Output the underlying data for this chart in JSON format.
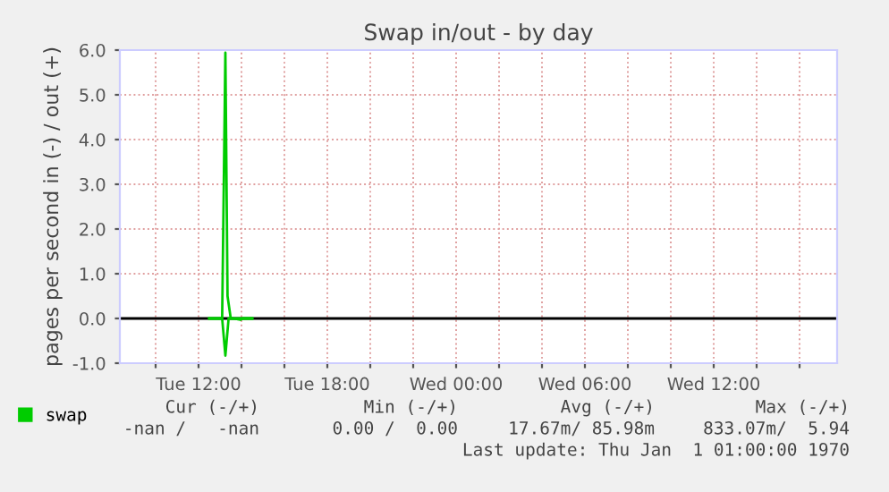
{
  "chart_data": {
    "type": "line",
    "title": "Swap in/out - by day",
    "ylabel": "pages per second in (-) / out (+)",
    "series": [
      {
        "name": "swap",
        "color": "#00cc00",
        "x": [
          "1970-01-06T12:30",
          "1970-01-06T13:06",
          "1970-01-06T13:15",
          "1970-01-06T13:21",
          "1970-01-06T13:30",
          "1970-01-06T14:00",
          "1970-01-06T14:30"
        ],
        "values": [
          0,
          0,
          5.94,
          0.5,
          0,
          0,
          0
        ]
      },
      {
        "color": "#00cc00",
        "x": [
          "1970-01-06T12:30",
          "1970-01-06T13:06",
          "1970-01-06T13:15",
          "1970-01-06T13:24",
          "1970-01-06T13:36",
          "1970-01-06T13:57",
          "1970-01-06T14:03",
          "1970-01-06T14:30"
        ],
        "values": [
          0,
          0,
          -0.83,
          0,
          0,
          -0.03,
          0,
          0
        ]
      }
    ],
    "xlim": [
      "1970-01-06T08:20",
      "1970-01-07T17:45"
    ],
    "xticks": [
      {
        "value": "1970-01-06T10:00",
        "label": null
      },
      {
        "value": "1970-01-06T12:00",
        "label": "Tue 12:00"
      },
      {
        "value": "1970-01-06T14:00",
        "label": null
      },
      {
        "value": "1970-01-06T16:00",
        "label": null
      },
      {
        "value": "1970-01-06T18:00",
        "label": "Tue 18:00"
      },
      {
        "value": "1970-01-06T20:00",
        "label": null
      },
      {
        "value": "1970-01-06T22:00",
        "label": null
      },
      {
        "value": "1970-01-07T00:00",
        "label": "Wed 00:00"
      },
      {
        "value": "1970-01-07T02:00",
        "label": null
      },
      {
        "value": "1970-01-07T04:00",
        "label": null
      },
      {
        "value": "1970-01-07T06:00",
        "label": "Wed 06:00"
      },
      {
        "value": "1970-01-07T08:00",
        "label": null
      },
      {
        "value": "1970-01-07T10:00",
        "label": null
      },
      {
        "value": "1970-01-07T12:00",
        "label": "Wed 12:00"
      },
      {
        "value": "1970-01-07T14:00",
        "label": null
      },
      {
        "value": "1970-01-07T16:00",
        "label": null
      }
    ],
    "ylim": [
      -1,
      6
    ],
    "yticks": [
      {
        "value": -1,
        "label": "-1.0"
      },
      {
        "value": 0,
        "label": "0.0"
      },
      {
        "value": 1,
        "label": "1.0"
      },
      {
        "value": 2,
        "label": "2.0"
      },
      {
        "value": 3,
        "label": "3.0"
      },
      {
        "value": 4,
        "label": "4.0"
      },
      {
        "value": 5,
        "label": "5.0"
      },
      {
        "value": 6,
        "label": "6.0"
      }
    ],
    "ref_lines": [
      {
        "axis": "y",
        "value": 0,
        "color": "#000000"
      }
    ],
    "grid": true,
    "legend": "bottom left",
    "marker": "none",
    "line_style": "solid",
    "annotations": [
      "Cur (-/+)",
      "Min (-/+)",
      "Avg (-/+)",
      "Max (-/+)",
      "-nan /   -nan",
      "0.00 /  0.00",
      "17.67m/ 85.98m",
      "833.07m/  5.94",
      "Last update: Thu Jan  1 01:00:00 1970"
    ]
  }
}
